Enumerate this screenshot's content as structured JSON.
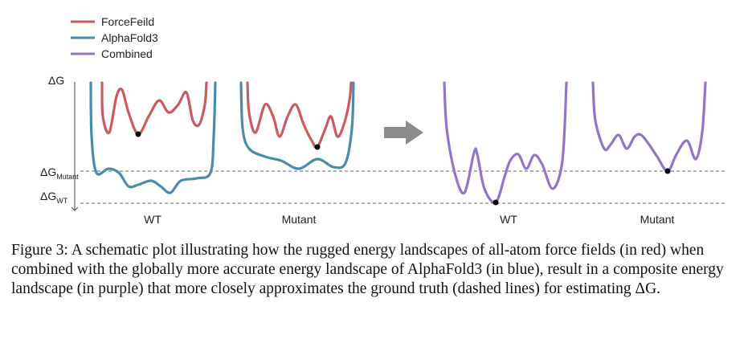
{
  "legend": {
    "items": [
      "ForceFeild",
      "AlphaFold3",
      "Combined"
    ]
  },
  "axis": {
    "label": "ΔG",
    "mutant_level": {
      "symbol": "ΔG",
      "subscript": "Mutant"
    },
    "wt_level": {
      "symbol": "ΔG",
      "subscript": "WT"
    }
  },
  "panels": [
    "WT",
    "Mutant",
    "WT",
    "Mutant"
  ],
  "caption": "Figure 3: A schematic plot illustrating how the rugged energy landscapes of all-atom force fields (in red) when combined with the globally more accurate energy landscape of AlphaFold3 (in blue), result in a composite energy landscape (in purple) that more closely approximates the ground truth (dashed lines) for estimating ΔG."
}
